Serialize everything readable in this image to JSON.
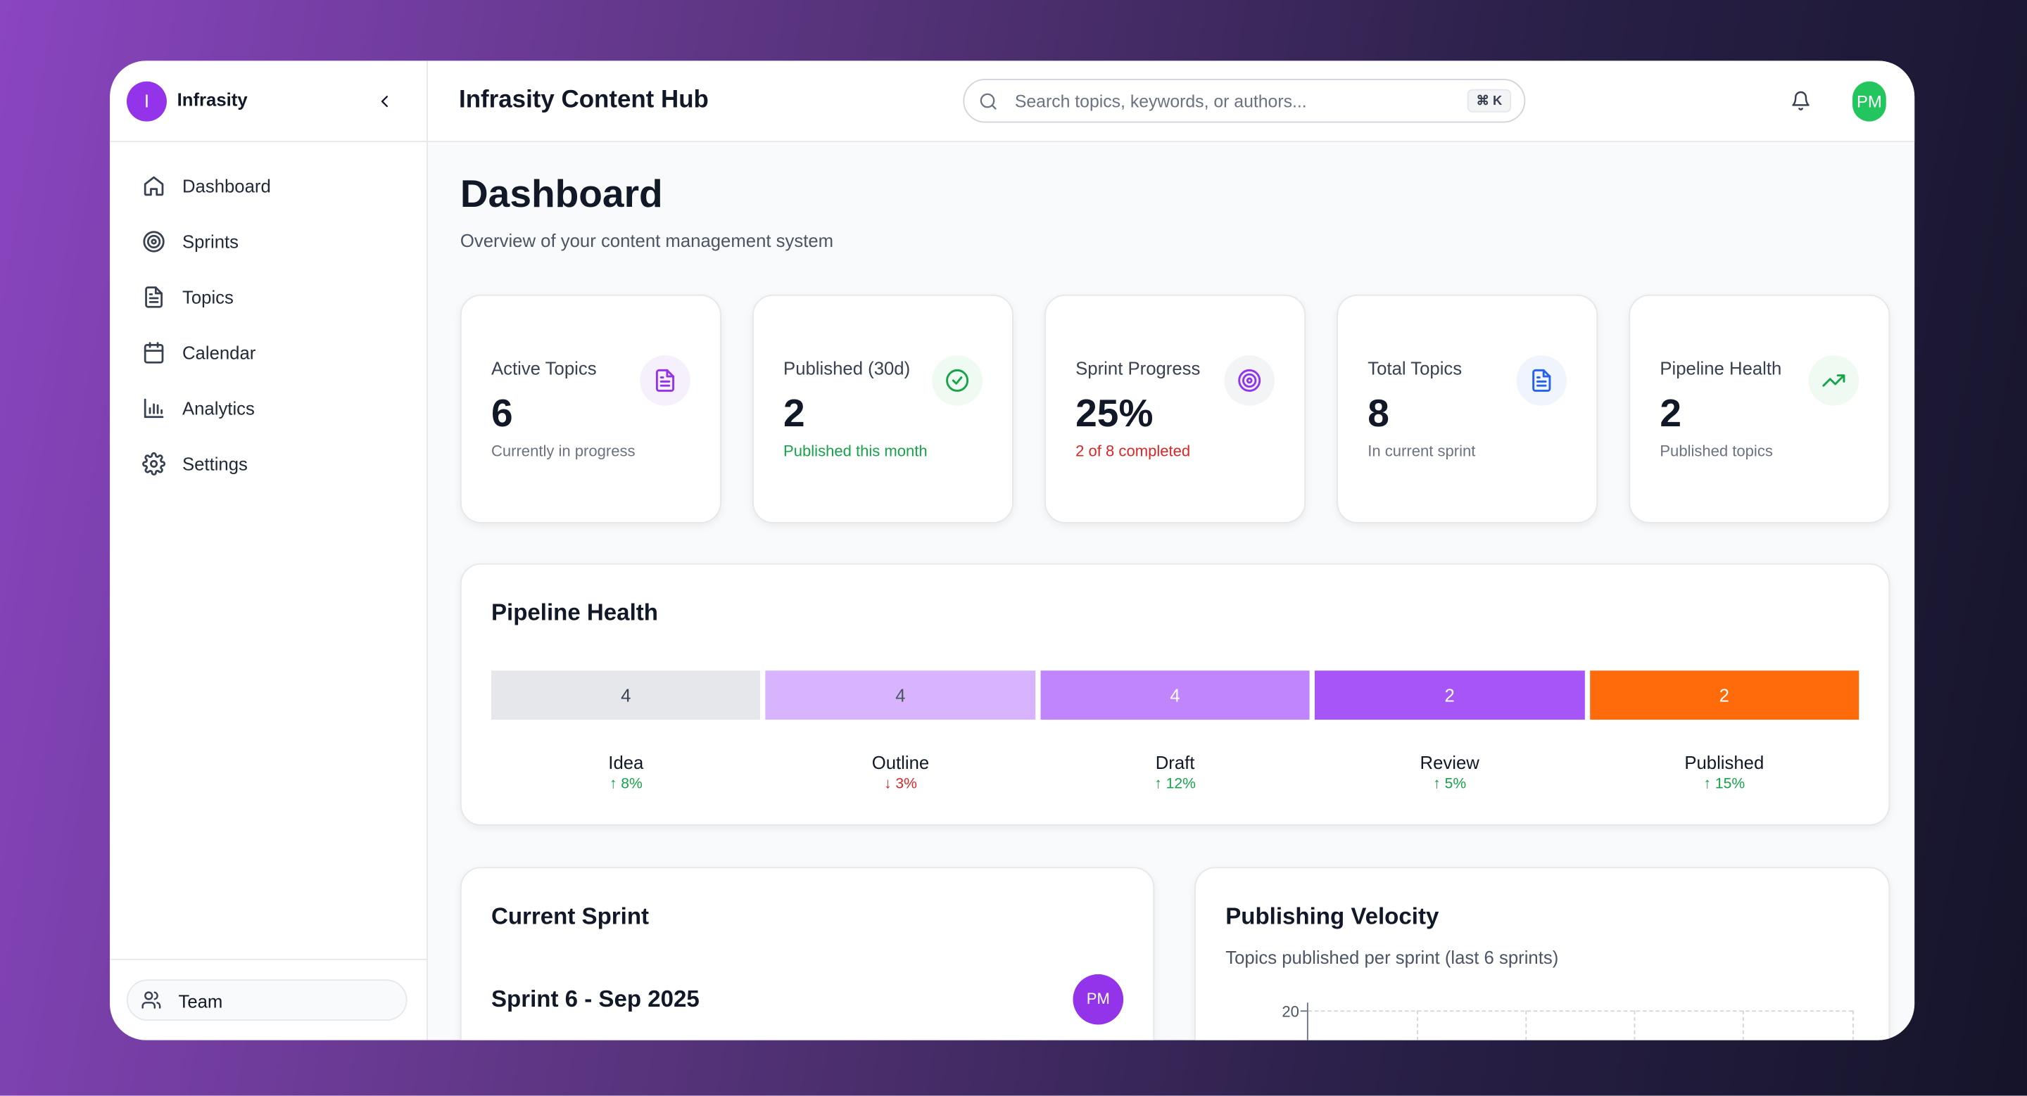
{
  "sidebar": {
    "brand_initial": "I",
    "brand": "Infrasity",
    "nav": [
      "Dashboard",
      "Sprints",
      "Topics",
      "Calendar",
      "Analytics",
      "Settings"
    ],
    "team": "Team"
  },
  "header": {
    "title": "Infrasity Content Hub",
    "search_placeholder": "Search topics, keywords, or authors...",
    "shortcut": "⌘ K",
    "avatar": "PM"
  },
  "page": {
    "title": "Dashboard",
    "subtitle": "Overview of your content management system"
  },
  "stats": [
    {
      "label": "Active Topics",
      "value": "6",
      "note": "Currently in progress"
    },
    {
      "label": "Published (30d)",
      "value": "2",
      "note": "Published this month"
    },
    {
      "label": "Sprint Progress",
      "value": "25%",
      "note": "2 of 8 completed"
    },
    {
      "label": "Total Topics",
      "value": "8",
      "note": "In current sprint"
    },
    {
      "label": "Pipeline Health",
      "value": "2",
      "note": "Published topics"
    }
  ],
  "pipeline": {
    "title": "Pipeline Health",
    "stages": [
      {
        "name": "Idea",
        "count": 4,
        "change": "↑ 8%"
      },
      {
        "name": "Outline",
        "count": 4,
        "change": "↓ 3%"
      },
      {
        "name": "Draft",
        "count": 4,
        "change": "↑ 12%"
      },
      {
        "name": "Review",
        "count": 2,
        "change": "↑ 5%"
      },
      {
        "name": "Published",
        "count": 2,
        "change": "↑ 15%"
      }
    ]
  },
  "current_sprint": {
    "title": "Current Sprint",
    "sprint_name": "Sprint 6 - Sep 2025",
    "owner": "PM"
  },
  "velocity": {
    "title": "Publishing Velocity",
    "subtitle": "Topics published per sprint (last 6 sprints)",
    "y_tick": 20
  }
}
